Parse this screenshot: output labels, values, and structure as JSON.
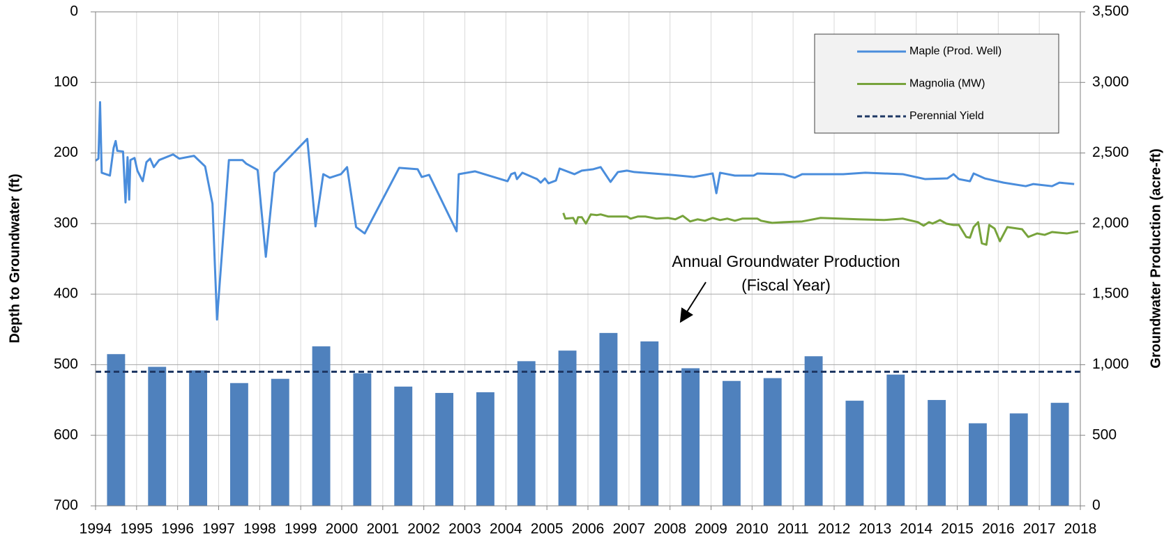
{
  "chart_data": {
    "type": "combo",
    "y_label": "Depth to Groundwater (ft)",
    "y2_label": "Groundwater Production (acre-ft)",
    "annotation": [
      "Annual Groundwater Production",
      "(Fiscal Year)"
    ],
    "xlim": [
      1994,
      2018
    ],
    "xticks": [
      1994,
      1995,
      1996,
      1997,
      1998,
      1999,
      2000,
      2001,
      2002,
      2003,
      2004,
      2005,
      2006,
      2007,
      2008,
      2009,
      2010,
      2011,
      2012,
      2013,
      2014,
      2015,
      2016,
      2017,
      2018
    ],
    "ylim": [
      700,
      0
    ],
    "yticks": [
      0,
      100,
      200,
      300,
      400,
      500,
      600,
      700
    ],
    "y2lim": [
      0,
      3500
    ],
    "y2ticks": [
      0,
      500,
      {
        "value": 1000,
        "label": "1,000"
      },
      {
        "value": 1500,
        "label": "1,500"
      },
      {
        "value": 2000,
        "label": "2,000"
      },
      {
        "value": 2500,
        "label": "2,500"
      },
      {
        "value": 3000,
        "label": "3,000"
      },
      {
        "value": 3500,
        "label": "3,500"
      }
    ],
    "grid": true,
    "legend": "top-right",
    "series": [
      {
        "type": "bar",
        "axis": "y2",
        "color": "#4f81bd",
        "x": [
          1994.5,
          1995.5,
          1996.5,
          1997.5,
          1998.5,
          1999.5,
          2000.5,
          2001.5,
          2002.5,
          2003.5,
          2004.5,
          2005.5,
          2006.5,
          2007.5,
          2008.5,
          2009.5,
          2010.5,
          2011.5,
          2012.5,
          2013.5,
          2014.5,
          2015.5,
          2016.5,
          2017.5
        ],
        "values": [
          1075,
          985,
          960,
          870,
          900,
          1130,
          940,
          845,
          800,
          805,
          1025,
          1100,
          1225,
          1165,
          975,
          885,
          905,
          1060,
          745,
          930,
          750,
          585,
          655,
          730
        ]
      },
      {
        "type": "line",
        "name": "Maple (Prod. Well)",
        "color": "#4a8ddc",
        "x": [
          1994.0,
          1994.07,
          1994.11,
          1994.15,
          1994.35,
          1994.44,
          1994.49,
          1994.53,
          1994.67,
          1994.73,
          1994.78,
          1994.82,
          1994.85,
          1994.95,
          1995.02,
          1995.15,
          1995.24,
          1995.33,
          1995.42,
          1995.55,
          1995.89,
          1996.04,
          1996.4,
          1996.67,
          1996.85,
          1996.96,
          1997.25,
          1997.58,
          1997.67,
          1997.95,
          1998.15,
          1998.36,
          1999.16,
          1999.36,
          1999.55,
          1999.71,
          1999.98,
          2000.13,
          2000.35,
          2000.56,
          2001.4,
          2001.85,
          2001.95,
          2002.13,
          2002.8,
          2002.85,
          2003.25,
          2004.04,
          2004.13,
          2004.22,
          2004.27,
          2004.4,
          2004.76,
          2004.85,
          2004.95,
          2005.04,
          2005.22,
          2005.31,
          2005.67,
          2005.85,
          2006.13,
          2006.31,
          2006.55,
          2006.73,
          2006.95,
          2007.13,
          2008.04,
          2008.58,
          2009.04,
          2009.13,
          2009.22,
          2009.58,
          2010.04,
          2010.13,
          2010.76,
          2011.04,
          2011.22,
          2012.22,
          2012.76,
          2013.67,
          2014.22,
          2014.76,
          2014.91,
          2015.04,
          2015.31,
          2015.4,
          2015.67,
          2016.13,
          2016.67,
          2016.85,
          2017.31,
          2017.49,
          2017.85
        ],
        "values": [
          211,
          208,
          128,
          228,
          232,
          193,
          183,
          197,
          198,
          270,
          206,
          266,
          210,
          207,
          225,
          240,
          213,
          208,
          220,
          210,
          202,
          208,
          204,
          219,
          272,
          436,
          210,
          210,
          215,
          224,
          347,
          228,
          180,
          304,
          230,
          235,
          230,
          220,
          305,
          314,
          221,
          223,
          234,
          231,
          311,
          230,
          226,
          240,
          230,
          228,
          237,
          228,
          237,
          242,
          236,
          243,
          239,
          222,
          230,
          225,
          223,
          220,
          241,
          227,
          225,
          227,
          231,
          234,
          229,
          257,
          228,
          232,
          232,
          229,
          230,
          235,
          230,
          230,
          228,
          230,
          237,
          236,
          230,
          237,
          240,
          229,
          236,
          242,
          247,
          244,
          247,
          242,
          244
        ]
      },
      {
        "type": "line",
        "name": "Magnolia (MW)",
        "color": "#77a33b",
        "x": [
          2005.4,
          2005.45,
          2005.64,
          2005.71,
          2005.76,
          2005.85,
          2005.95,
          2006.07,
          2006.22,
          2006.31,
          2006.49,
          2006.95,
          2007.04,
          2007.22,
          2007.4,
          2007.67,
          2007.95,
          2008.13,
          2008.31,
          2008.49,
          2008.67,
          2008.85,
          2009.04,
          2009.22,
          2009.4,
          2009.58,
          2009.76,
          2010.13,
          2010.22,
          2010.49,
          2010.76,
          2011.22,
          2011.67,
          2012.58,
          2013.22,
          2013.67,
          2014.04,
          2014.18,
          2014.31,
          2014.4,
          2014.58,
          2014.73,
          2014.91,
          2015.04,
          2015.22,
          2015.31,
          2015.4,
          2015.51,
          2015.6,
          2015.71,
          2015.78,
          2015.91,
          2016.04,
          2016.22,
          2016.58,
          2016.73,
          2016.95,
          2017.13,
          2017.31,
          2017.67,
          2017.95
        ],
        "values": [
          285,
          293,
          292,
          300,
          291,
          291,
          300,
          287,
          288,
          287,
          290,
          290,
          293,
          290,
          290,
          293,
          292,
          294,
          289,
          297,
          294,
          296,
          292,
          295,
          293,
          296,
          293,
          293,
          296,
          299,
          298,
          297,
          292,
          294,
          295,
          293,
          298,
          303,
          298,
          300,
          295,
          300,
          302,
          302,
          319,
          320,
          305,
          298,
          328,
          330,
          302,
          307,
          325,
          305,
          308,
          319,
          314,
          316,
          312,
          314,
          311
        ]
      },
      {
        "type": "line",
        "name": "Perennial Yield",
        "axis": "y2",
        "color": "#1f3864",
        "dashed": true,
        "x": [
          1994,
          2018
        ],
        "values": [
          950,
          950
        ]
      }
    ]
  }
}
